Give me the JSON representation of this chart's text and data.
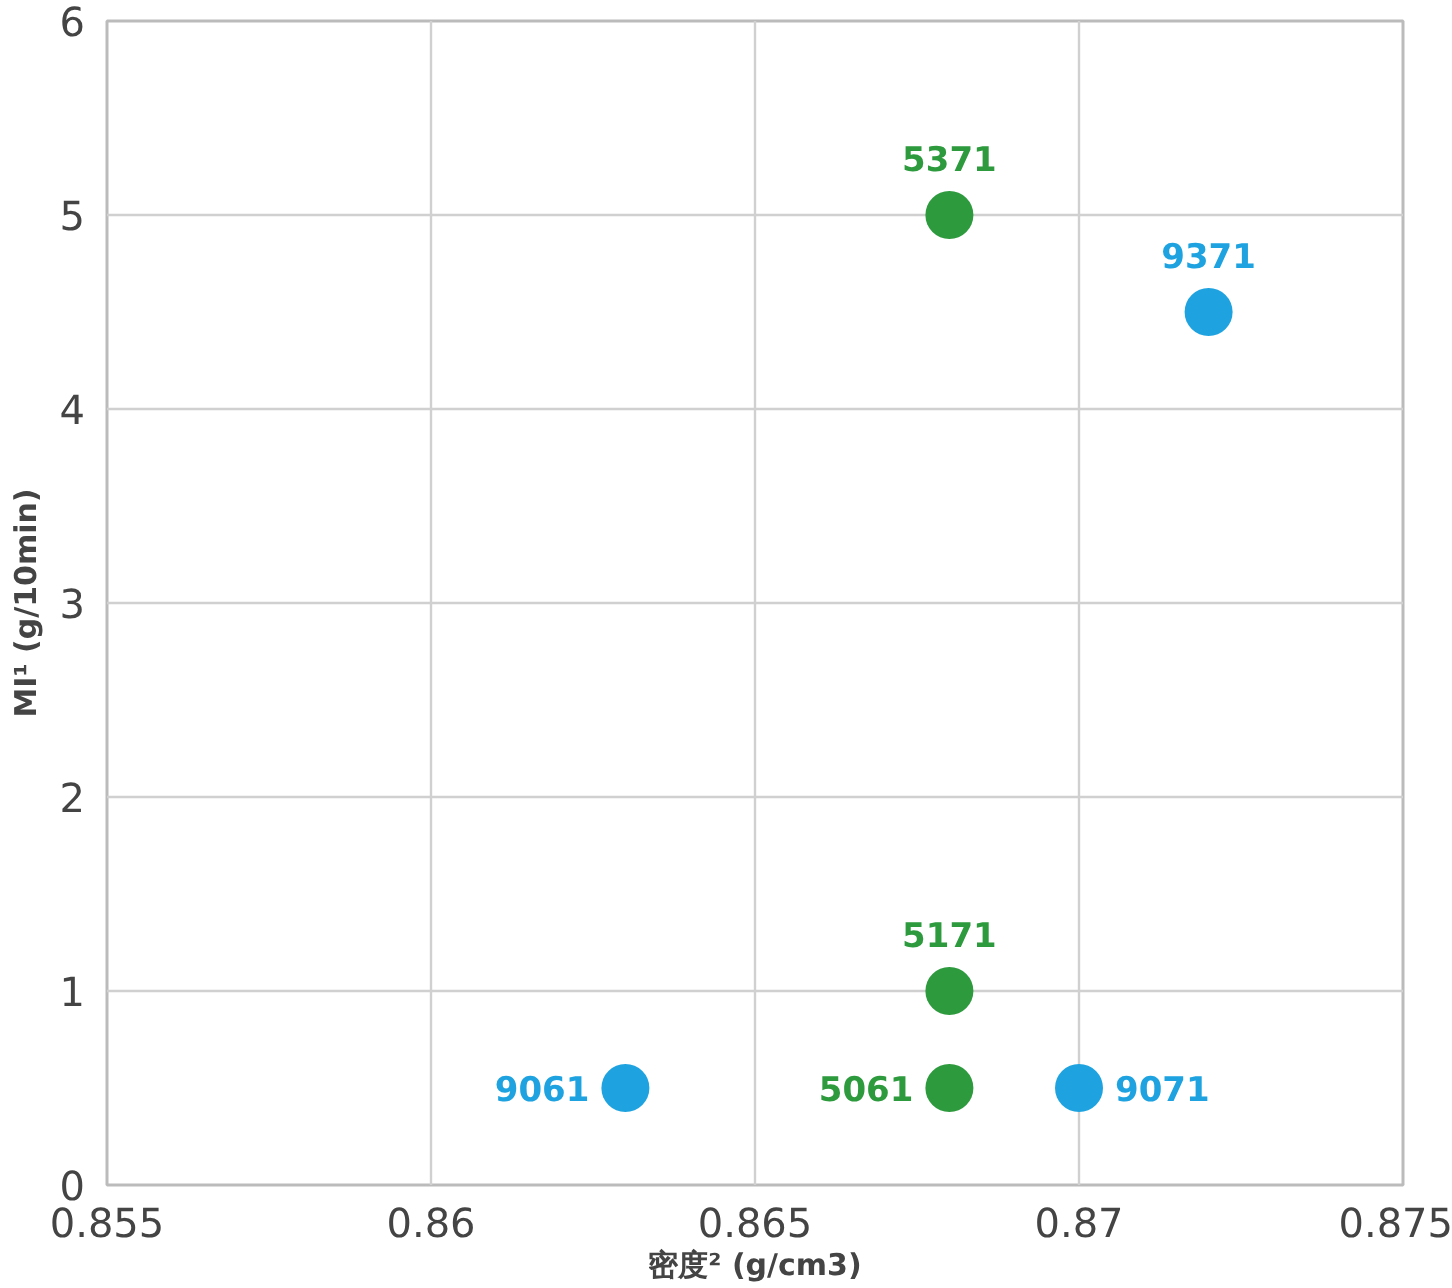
{
  "chart_data": {
    "type": "scatter",
    "xlabel": "密度² (g/cm3)",
    "ylabel": "MI¹ (g/10min)",
    "xlim": [
      0.855,
      0.875
    ],
    "xticks": [
      0.855,
      0.86,
      0.865,
      0.87,
      0.875
    ],
    "ylim": [
      0,
      6
    ],
    "yticks": [
      0,
      1,
      2,
      3,
      4,
      5,
      6
    ],
    "grid": true,
    "marker": "circle",
    "series": [
      {
        "color": "#2e9a3e",
        "x": [
          0.868,
          0.868,
          0.868
        ],
        "values": [
          5,
          1,
          0.5
        ]
      },
      {
        "color": "#1ea3e0",
        "x": [
          0.872,
          0.863,
          0.87
        ],
        "values": [
          4.5,
          0.5,
          0.5
        ]
      }
    ],
    "annotations": [
      {
        "text": "5371",
        "x": 0.868,
        "y": 5
      },
      {
        "text": "5171",
        "x": 0.868,
        "y": 1
      },
      {
        "text": "5061",
        "x": 0.868,
        "y": 0.5
      },
      {
        "text": "9371",
        "x": 0.872,
        "y": 4.5
      },
      {
        "text": "9061",
        "x": 0.863,
        "y": 0.5
      },
      {
        "text": "9071",
        "x": 0.87,
        "y": 0.5
      }
    ]
  }
}
